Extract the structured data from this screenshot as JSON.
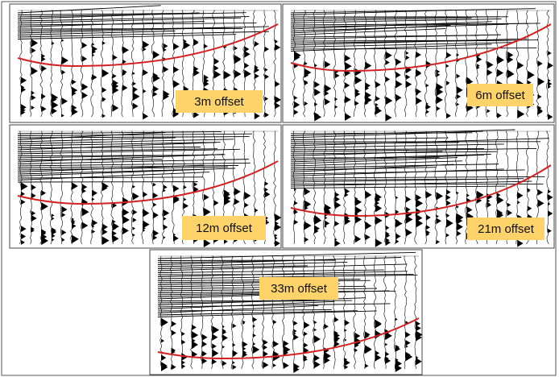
{
  "panels": [
    {
      "label": "3m offset"
    },
    {
      "label": "6m offset"
    },
    {
      "label": "12m offset"
    },
    {
      "label": "21m offset"
    },
    {
      "label": "33m offset"
    }
  ]
}
